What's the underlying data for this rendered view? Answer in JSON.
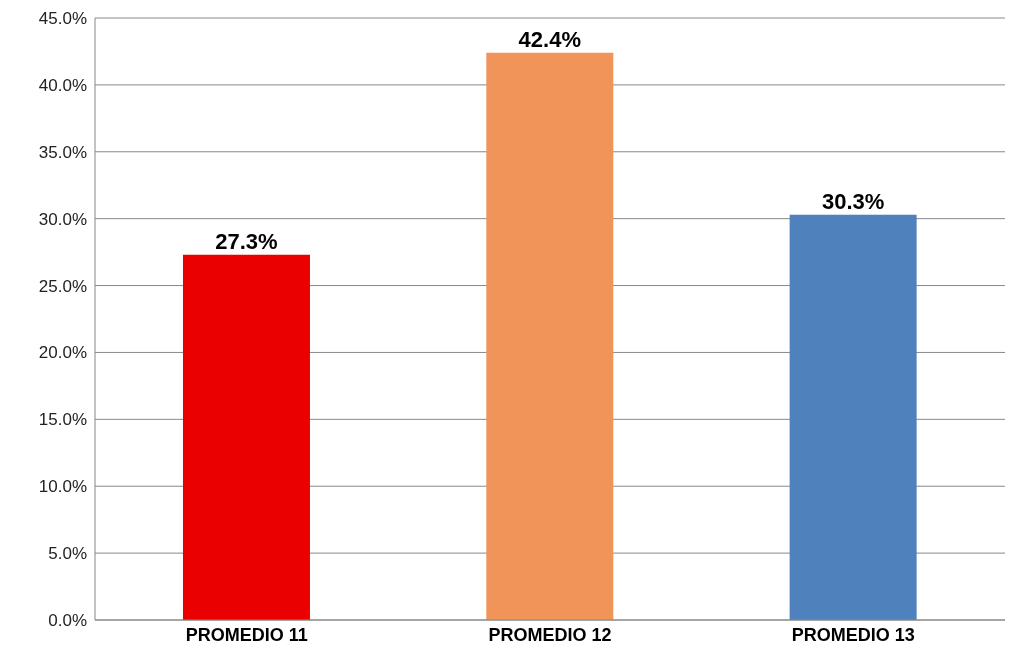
{
  "chart_data": {
    "type": "bar",
    "categories": [
      "PROMEDIO 11",
      "PROMEDIO 12",
      "PROMEDIO 13"
    ],
    "values": [
      27.3,
      42.4,
      30.3
    ],
    "colors": [
      "#ea0000",
      "#f0945a",
      "#4f81bd"
    ],
    "value_labels": [
      "27.3%",
      "42.4%",
      "30.3%"
    ],
    "ylim": [
      0,
      45
    ],
    "yticks": [
      {
        "value": 0,
        "label": "0.0%"
      },
      {
        "value": 5,
        "label": "5.0%"
      },
      {
        "value": 10,
        "label": "10.0%"
      },
      {
        "value": 15,
        "label": "15.0%"
      },
      {
        "value": 20,
        "label": "20.0%"
      },
      {
        "value": 25,
        "label": "25.0%"
      },
      {
        "value": 30,
        "label": "30.0%"
      },
      {
        "value": 35,
        "label": "35.0%"
      },
      {
        "value": 40,
        "label": "40.0%"
      },
      {
        "value": 45,
        "label": "45.0%"
      }
    ],
    "grid": "y",
    "legend": false
  }
}
